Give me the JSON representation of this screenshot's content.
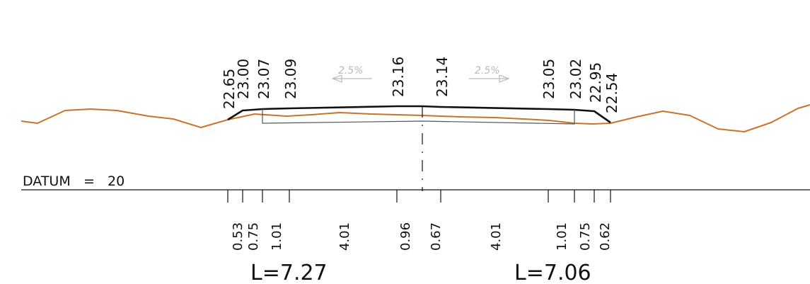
{
  "drawing": {
    "datum_label": "DATUM",
    "datum_equals": "=",
    "datum_value": "20",
    "top_elevations": [
      "22.65",
      "23.00",
      "23.07",
      "23.09",
      "23.16",
      "23.14",
      "23.05",
      "23.02",
      "22.95",
      "22.54"
    ],
    "segment_widths": [
      "0.53",
      "0.75",
      "1.01",
      "4.01",
      "0.96",
      "0.67",
      "4.01",
      "1.01",
      "0.75",
      "0.62"
    ],
    "left_total": "L=7.27",
    "right_total": "L=7.06",
    "left_crossfall": "2.5%",
    "right_crossfall": "2.5%",
    "colors": {
      "ground": "#c8742a",
      "road": "#111111",
      "crossfall": "#b9b9b9"
    }
  }
}
